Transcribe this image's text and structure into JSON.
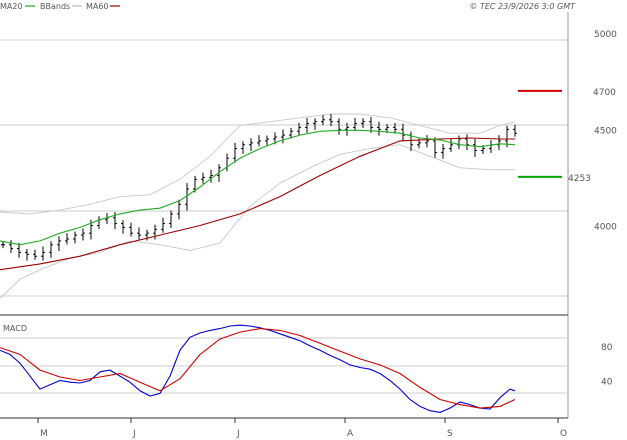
{
  "header": {
    "legend": [
      {
        "label": "MA20",
        "color": "#22aa22"
      },
      {
        "label": "BBands",
        "color": "#bbbbbb"
      },
      {
        "label": "MA60",
        "color": "#990000"
      }
    ],
    "copyright": "© TEC 23/9/2026 3:0 GMT"
  },
  "chart_data": [
    {
      "type": "line",
      "panel": "price",
      "series_style": "ohlc-bars",
      "x_ticks": [
        "M",
        "J",
        "J",
        "A",
        "S",
        "O"
      ],
      "y_ticks": [
        "5000",
        "4500",
        "4000"
      ],
      "ylim": [
        3550,
        5100
      ],
      "annotations": [
        {
          "label": "4700",
          "value": 4700,
          "color": "#cc0000"
        },
        {
          "label": "4253",
          "value": 4253,
          "color": "#00aa00"
        }
      ],
      "ma20": [
        [
          0,
          3920
        ],
        [
          20,
          3900
        ],
        [
          40,
          3920
        ],
        [
          60,
          3960
        ],
        [
          80,
          3990
        ],
        [
          100,
          4030
        ],
        [
          120,
          4060
        ],
        [
          140,
          4080
        ],
        [
          160,
          4090
        ],
        [
          180,
          4130
        ],
        [
          200,
          4200
        ],
        [
          220,
          4280
        ],
        [
          240,
          4350
        ],
        [
          260,
          4400
        ],
        [
          280,
          4440
        ],
        [
          300,
          4470
        ],
        [
          320,
          4490
        ],
        [
          340,
          4495
        ],
        [
          360,
          4495
        ],
        [
          380,
          4490
        ],
        [
          400,
          4480
        ],
        [
          420,
          4455
        ],
        [
          440,
          4445
        ],
        [
          460,
          4420
        ],
        [
          480,
          4410
        ],
        [
          500,
          4425
        ],
        [
          515,
          4420
        ]
      ],
      "ma60": [
        [
          0,
          3770
        ],
        [
          40,
          3800
        ],
        [
          80,
          3840
        ],
        [
          120,
          3900
        ],
        [
          160,
          3950
        ],
        [
          200,
          4000
        ],
        [
          240,
          4060
        ],
        [
          280,
          4150
        ],
        [
          320,
          4260
        ],
        [
          360,
          4360
        ],
        [
          400,
          4440
        ],
        [
          440,
          4450
        ],
        [
          470,
          4455
        ],
        [
          500,
          4450
        ],
        [
          515,
          4450
        ]
      ],
      "bb_upper": [
        [
          0,
          4070
        ],
        [
          30,
          4060
        ],
        [
          60,
          4080
        ],
        [
          90,
          4110
        ],
        [
          120,
          4150
        ],
        [
          150,
          4160
        ],
        [
          180,
          4240
        ],
        [
          210,
          4360
        ],
        [
          240,
          4520
        ],
        [
          270,
          4540
        ],
        [
          300,
          4560
        ],
        [
          330,
          4580
        ],
        [
          360,
          4580
        ],
        [
          390,
          4560
        ],
        [
          420,
          4520
        ],
        [
          450,
          4480
        ],
        [
          480,
          4480
        ],
        [
          500,
          4520
        ],
        [
          515,
          4540
        ]
      ],
      "bb_lower": [
        [
          0,
          3620
        ],
        [
          20,
          3720
        ],
        [
          40,
          3770
        ],
        [
          70,
          3830
        ],
        [
          100,
          3860
        ],
        [
          130,
          3920
        ],
        [
          160,
          3900
        ],
        [
          190,
          3870
        ],
        [
          220,
          3910
        ],
        [
          250,
          4100
        ],
        [
          280,
          4220
        ],
        [
          310,
          4300
        ],
        [
          340,
          4370
        ],
        [
          370,
          4400
        ],
        [
          400,
          4420
        ],
        [
          430,
          4360
        ],
        [
          460,
          4300
        ],
        [
          490,
          4290
        ],
        [
          515,
          4290
        ]
      ],
      "closes": [
        [
          0,
          3900
        ],
        [
          8,
          3880
        ],
        [
          16,
          3860
        ],
        [
          24,
          3850
        ],
        [
          32,
          3840
        ],
        [
          40,
          3860
        ],
        [
          48,
          3900
        ],
        [
          56,
          3920
        ],
        [
          64,
          3930
        ],
        [
          72,
          3950
        ],
        [
          80,
          3960
        ],
        [
          88,
          4000
        ],
        [
          96,
          4030
        ],
        [
          104,
          4040
        ],
        [
          112,
          4010
        ],
        [
          120,
          3990
        ],
        [
          128,
          3960
        ],
        [
          136,
          3950
        ],
        [
          144,
          3960
        ],
        [
          152,
          3980
        ],
        [
          160,
          4010
        ],
        [
          168,
          4060
        ],
        [
          176,
          4110
        ],
        [
          184,
          4190
        ],
        [
          192,
          4240
        ],
        [
          200,
          4250
        ],
        [
          208,
          4260
        ],
        [
          216,
          4300
        ],
        [
          224,
          4350
        ],
        [
          232,
          4400
        ],
        [
          240,
          4420
        ],
        [
          248,
          4430
        ],
        [
          256,
          4440
        ],
        [
          264,
          4450
        ],
        [
          272,
          4460
        ],
        [
          280,
          4470
        ],
        [
          288,
          4490
        ],
        [
          296,
          4510
        ],
        [
          304,
          4530
        ],
        [
          312,
          4540
        ],
        [
          320,
          4550
        ],
        [
          328,
          4540
        ],
        [
          336,
          4500
        ],
        [
          344,
          4510
        ],
        [
          352,
          4530
        ],
        [
          360,
          4540
        ],
        [
          368,
          4510
        ],
        [
          376,
          4500
        ],
        [
          384,
          4510
        ],
        [
          392,
          4500
        ],
        [
          400,
          4470
        ],
        [
          408,
          4420
        ],
        [
          416,
          4430
        ],
        [
          424,
          4440
        ],
        [
          432,
          4380
        ],
        [
          440,
          4400
        ],
        [
          448,
          4420
        ],
        [
          456,
          4450
        ],
        [
          464,
          4420
        ],
        [
          472,
          4390
        ],
        [
          480,
          4400
        ],
        [
          488,
          4420
        ],
        [
          496,
          4440
        ],
        [
          504,
          4500
        ],
        [
          512,
          4480
        ]
      ]
    },
    {
      "type": "line",
      "panel": "macd",
      "title": "MACD",
      "y_ticks": [
        "80",
        "40"
      ],
      "ylim": [
        0,
        110
      ],
      "macd": [
        [
          0,
          75
        ],
        [
          10,
          70
        ],
        [
          20,
          60
        ],
        [
          30,
          45
        ],
        [
          40,
          30
        ],
        [
          50,
          35
        ],
        [
          60,
          40
        ],
        [
          70,
          38
        ],
        [
          80,
          37
        ],
        [
          90,
          40
        ],
        [
          100,
          50
        ],
        [
          110,
          52
        ],
        [
          120,
          45
        ],
        [
          130,
          38
        ],
        [
          140,
          28
        ],
        [
          150,
          22
        ],
        [
          160,
          25
        ],
        [
          170,
          45
        ],
        [
          180,
          75
        ],
        [
          190,
          90
        ],
        [
          200,
          95
        ],
        [
          210,
          98
        ],
        [
          220,
          100
        ],
        [
          230,
          103
        ],
        [
          240,
          104
        ],
        [
          250,
          103
        ],
        [
          260,
          101
        ],
        [
          270,
          98
        ],
        [
          280,
          94
        ],
        [
          290,
          90
        ],
        [
          300,
          86
        ],
        [
          310,
          80
        ],
        [
          320,
          75
        ],
        [
          330,
          69
        ],
        [
          340,
          64
        ],
        [
          350,
          58
        ],
        [
          360,
          55
        ],
        [
          370,
          53
        ],
        [
          380,
          48
        ],
        [
          390,
          40
        ],
        [
          400,
          30
        ],
        [
          410,
          18
        ],
        [
          420,
          10
        ],
        [
          430,
          5
        ],
        [
          440,
          3
        ],
        [
          450,
          8
        ],
        [
          460,
          15
        ],
        [
          470,
          12
        ],
        [
          480,
          8
        ],
        [
          490,
          7
        ],
        [
          500,
          20
        ],
        [
          510,
          30
        ],
        [
          515,
          28
        ]
      ],
      "signal": [
        [
          0,
          78
        ],
        [
          20,
          70
        ],
        [
          40,
          52
        ],
        [
          60,
          44
        ],
        [
          80,
          40
        ],
        [
          100,
          44
        ],
        [
          120,
          48
        ],
        [
          140,
          38
        ],
        [
          160,
          28
        ],
        [
          180,
          42
        ],
        [
          200,
          70
        ],
        [
          220,
          88
        ],
        [
          240,
          96
        ],
        [
          260,
          100
        ],
        [
          280,
          98
        ],
        [
          300,
          92
        ],
        [
          320,
          83
        ],
        [
          340,
          74
        ],
        [
          360,
          65
        ],
        [
          380,
          58
        ],
        [
          400,
          48
        ],
        [
          420,
          32
        ],
        [
          440,
          18
        ],
        [
          460,
          12
        ],
        [
          480,
          8
        ],
        [
          500,
          10
        ],
        [
          515,
          18
        ]
      ]
    }
  ]
}
